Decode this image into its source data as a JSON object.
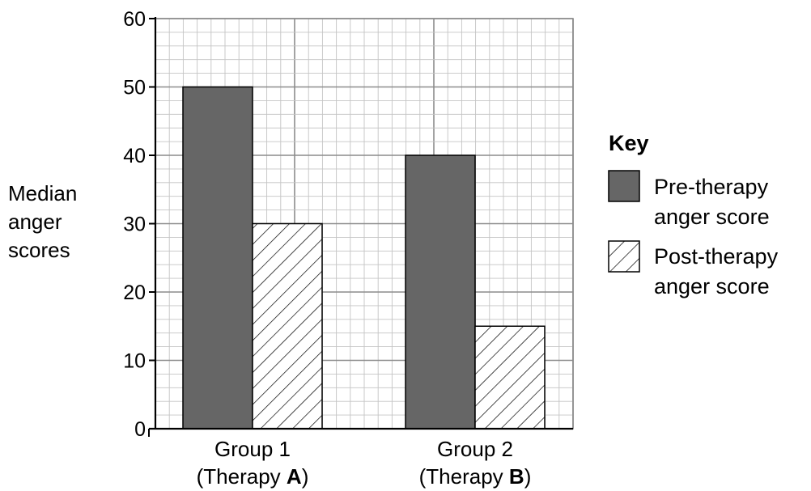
{
  "chart_data": {
    "type": "bar",
    "ylabel_lines": [
      "Median",
      "anger",
      "scores"
    ],
    "categories": [
      {
        "line1": "Group 1",
        "line2_pre": "(Therapy ",
        "line2_bold": "A",
        "line2_post": ")"
      },
      {
        "line1": "Group 2",
        "line2_pre": "(Therapy ",
        "line2_bold": "B",
        "line2_post": ")"
      }
    ],
    "series": [
      {
        "name_lines": [
          "Pre-therapy",
          "anger score"
        ],
        "values": [
          50,
          40
        ],
        "fill": "#666666",
        "pattern": "solid"
      },
      {
        "name_lines": [
          "Post-therapy",
          "anger score"
        ],
        "values": [
          30,
          15
        ],
        "fill": "#ffffff",
        "pattern": "diagonal-hatch"
      }
    ],
    "ylim": [
      0,
      60
    ],
    "yticks": [
      0,
      10,
      20,
      30,
      40,
      50,
      60
    ],
    "grid": true,
    "legend": {
      "title": "Key",
      "placement": "right"
    }
  }
}
